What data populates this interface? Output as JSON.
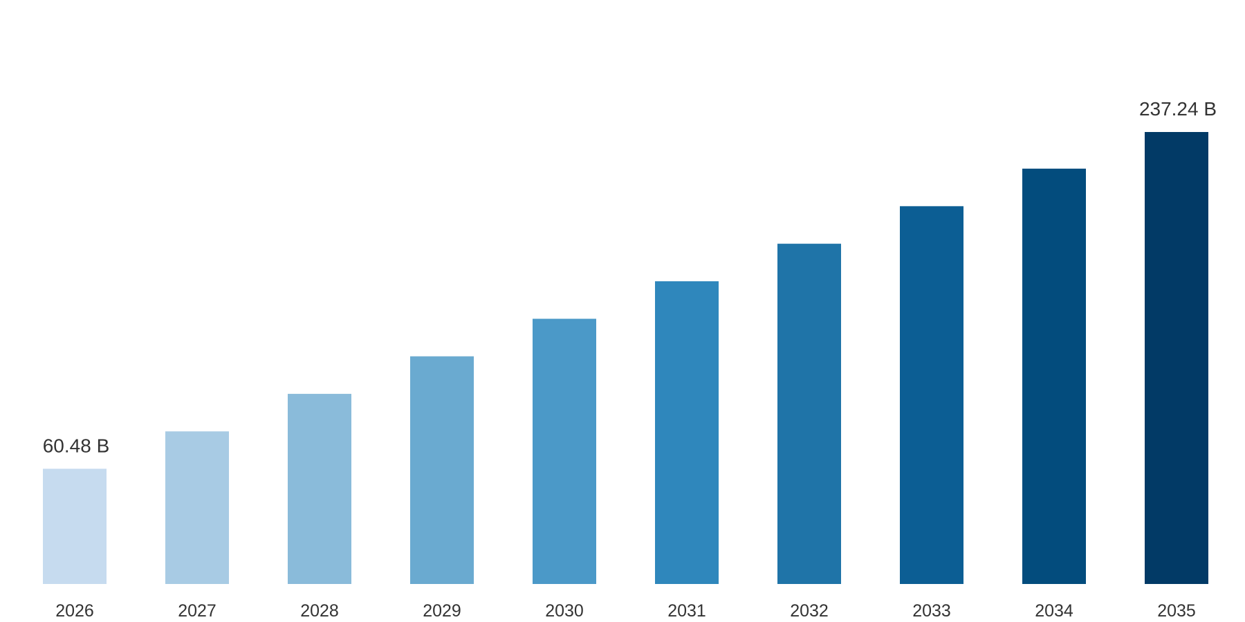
{
  "chart_data": {
    "type": "bar",
    "categories": [
      "2026",
      "2027",
      "2028",
      "2029",
      "2030",
      "2031",
      "2032",
      "2033",
      "2034",
      "2035"
    ],
    "values": [
      60.48,
      80.1,
      99.8,
      119.5,
      139.2,
      158.9,
      178.6,
      198.3,
      218.0,
      237.24
    ],
    "data_labels": [
      {
        "category": "2026",
        "text": "60.48 B"
      },
      {
        "category": "2035",
        "text": "237.24 B"
      }
    ],
    "title": "",
    "xlabel": "",
    "ylabel": "",
    "ylim": [
      0,
      237.24
    ],
    "grid": false,
    "legend": "none",
    "colors": [
      "#c6dbef",
      "#a8cbe4",
      "#8abbda",
      "#6aaad0",
      "#4b99c8",
      "#2f87bc",
      "#1f74a8",
      "#0c5e94",
      "#034c7d",
      "#023a66"
    ]
  }
}
